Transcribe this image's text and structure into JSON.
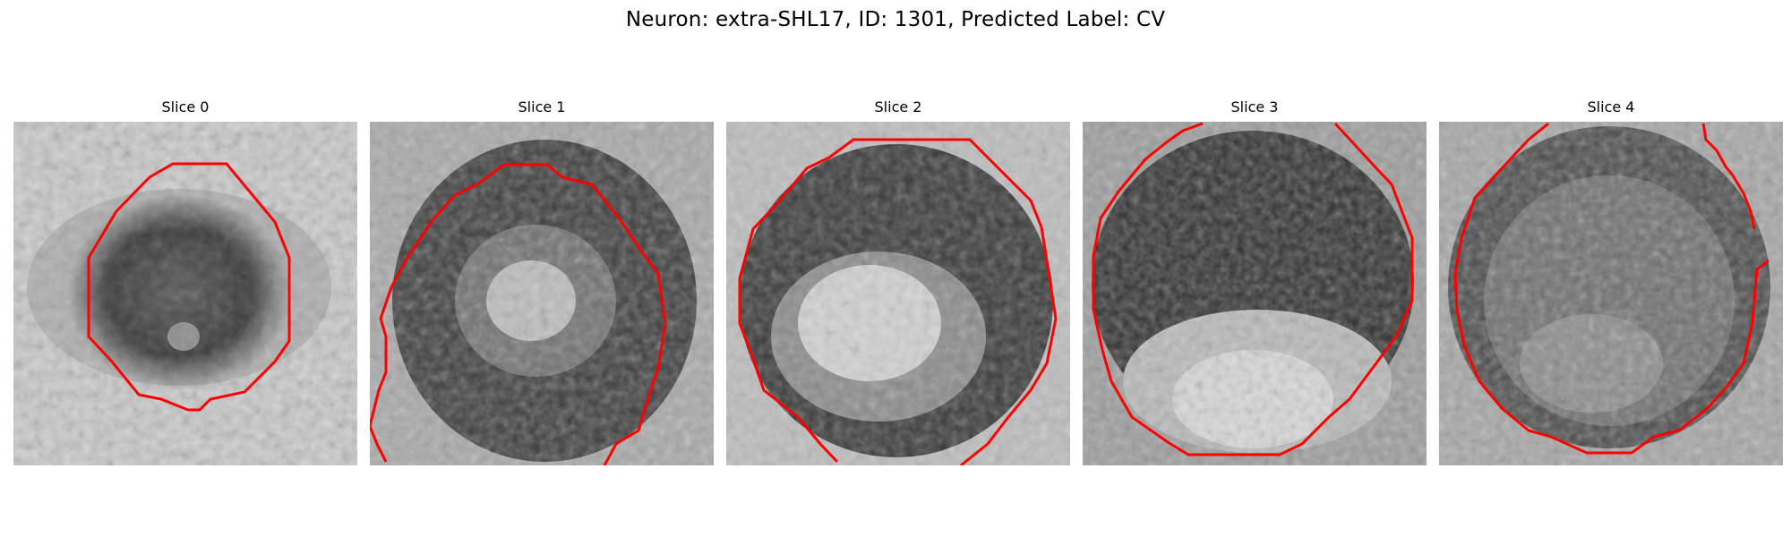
{
  "figure": {
    "title": "Neuron: extra-SHL17, ID: 1301, Predicted Label: CV"
  },
  "panels": [
    {
      "title": "Slice 0"
    },
    {
      "title": "Slice 1"
    },
    {
      "title": "Slice 2"
    },
    {
      "title": "Slice 3"
    },
    {
      "title": "Slice 4"
    }
  ],
  "colors": {
    "contour": "#ff0000",
    "background": "#ffffff"
  }
}
